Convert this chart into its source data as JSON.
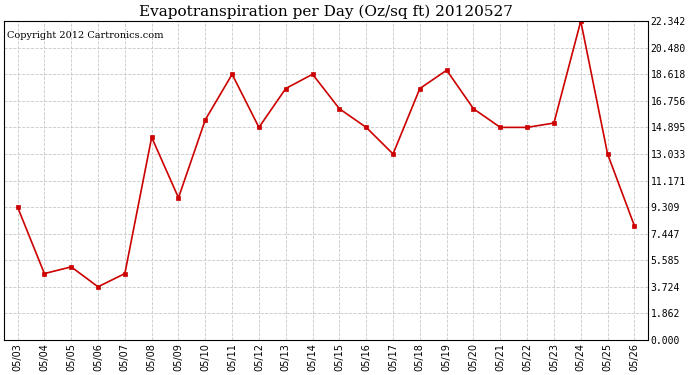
{
  "title": "Evapotranspiration per Day (Oz/sq ft) 20120527",
  "copyright": "Copyright 2012 Cartronics.com",
  "x_labels": [
    "05/03",
    "05/04",
    "05/05",
    "05/06",
    "05/07",
    "05/08",
    "05/09",
    "05/10",
    "05/11",
    "05/12",
    "05/13",
    "05/14",
    "05/15",
    "05/16",
    "05/17",
    "05/18",
    "05/19",
    "05/20",
    "05/21",
    "05/22",
    "05/23",
    "05/24",
    "05/25",
    "05/26"
  ],
  "y_values": [
    9.309,
    4.65,
    5.12,
    3.724,
    4.65,
    14.2,
    9.962,
    15.43,
    18.618,
    14.895,
    17.619,
    18.618,
    16.2,
    14.895,
    13.033,
    17.619,
    18.9,
    16.2,
    14.895,
    14.895,
    15.2,
    22.342,
    13.033,
    8.0
  ],
  "y_min": 0.0,
  "y_max": 22.342,
  "y_ticks": [
    0.0,
    1.862,
    3.724,
    5.585,
    7.447,
    9.309,
    11.171,
    13.033,
    14.895,
    16.756,
    18.618,
    20.48,
    22.342
  ],
  "line_color": "#cc0000",
  "marker": "s",
  "marker_size": 3,
  "background_color": "#ffffff",
  "grid_color": "#c8c8c8",
  "title_fontsize": 11,
  "copyright_fontsize": 7,
  "tick_fontsize": 7,
  "figwidth": 6.9,
  "figheight": 3.75,
  "dpi": 100
}
